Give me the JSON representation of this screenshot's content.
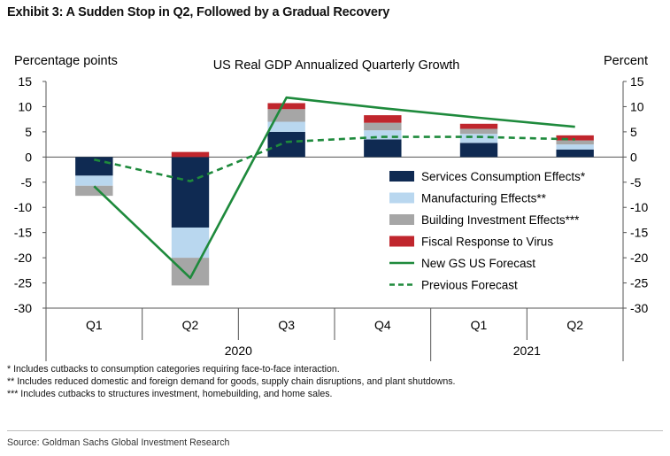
{
  "exhibit_title": "Exhibit 3: A Sudden Stop in Q2, Followed by a Gradual Recovery",
  "notes": [
    "* Includes cutbacks to consumption categories requiring face-to-face interaction.",
    "** Includes reduced domestic and foreign demand for goods, supply chain disruptions, and plant shutdowns.",
    "*** Includes cutbacks to structures investment, homebuilding, and home sales."
  ],
  "source": "Source: Goldman Sachs Global Investment Research",
  "chart_data": {
    "type": "bar",
    "title": "US Real GDP Annualized Quarterly Growth",
    "ylabel_left": "Percentage points",
    "ylabel_right": "Percent",
    "ylim": [
      -30,
      15
    ],
    "yticks": [
      15,
      10,
      5,
      0,
      -5,
      -10,
      -15,
      -20,
      -25,
      -30
    ],
    "categories": [
      "Q1",
      "Q2",
      "Q3",
      "Q4",
      "Q1",
      "Q2"
    ],
    "year_groups": [
      {
        "label": "2020",
        "span": [
          0,
          3
        ]
      },
      {
        "label": "2021",
        "span": [
          4,
          5
        ]
      }
    ],
    "stacked_series": [
      {
        "name": "Services Consumption Effects*",
        "color": "#0f2a52",
        "values": [
          -3.7,
          -14.0,
          5.0,
          3.5,
          2.8,
          1.5
        ]
      },
      {
        "name": "Manufacturing Effects**",
        "color": "#b9d7ef",
        "values": [
          -2.0,
          -6.0,
          2.0,
          1.8,
          1.8,
          1.0
        ]
      },
      {
        "name": "Building Investment Effects***",
        "color": "#a6a6a6",
        "values": [
          -2.0,
          -5.5,
          2.5,
          1.5,
          1.0,
          0.8
        ]
      },
      {
        "name": "Fiscal Response to Virus",
        "color": "#c0262d",
        "values": [
          0.0,
          1.0,
          1.2,
          1.5,
          1.0,
          1.0
        ]
      }
    ],
    "line_series": [
      {
        "name": "New GS US Forecast",
        "color": "#1e8a3c",
        "style": "solid",
        "values": [
          -5.8,
          -24.0,
          11.8,
          9.7,
          7.8,
          6.0
        ]
      },
      {
        "name": "Previous Forecast",
        "color": "#1e8a3c",
        "style": "dashed",
        "values": [
          -0.5,
          -4.8,
          3.0,
          4.0,
          4.0,
          3.5
        ]
      }
    ],
    "legend_position": "lower-right",
    "grid": false
  }
}
